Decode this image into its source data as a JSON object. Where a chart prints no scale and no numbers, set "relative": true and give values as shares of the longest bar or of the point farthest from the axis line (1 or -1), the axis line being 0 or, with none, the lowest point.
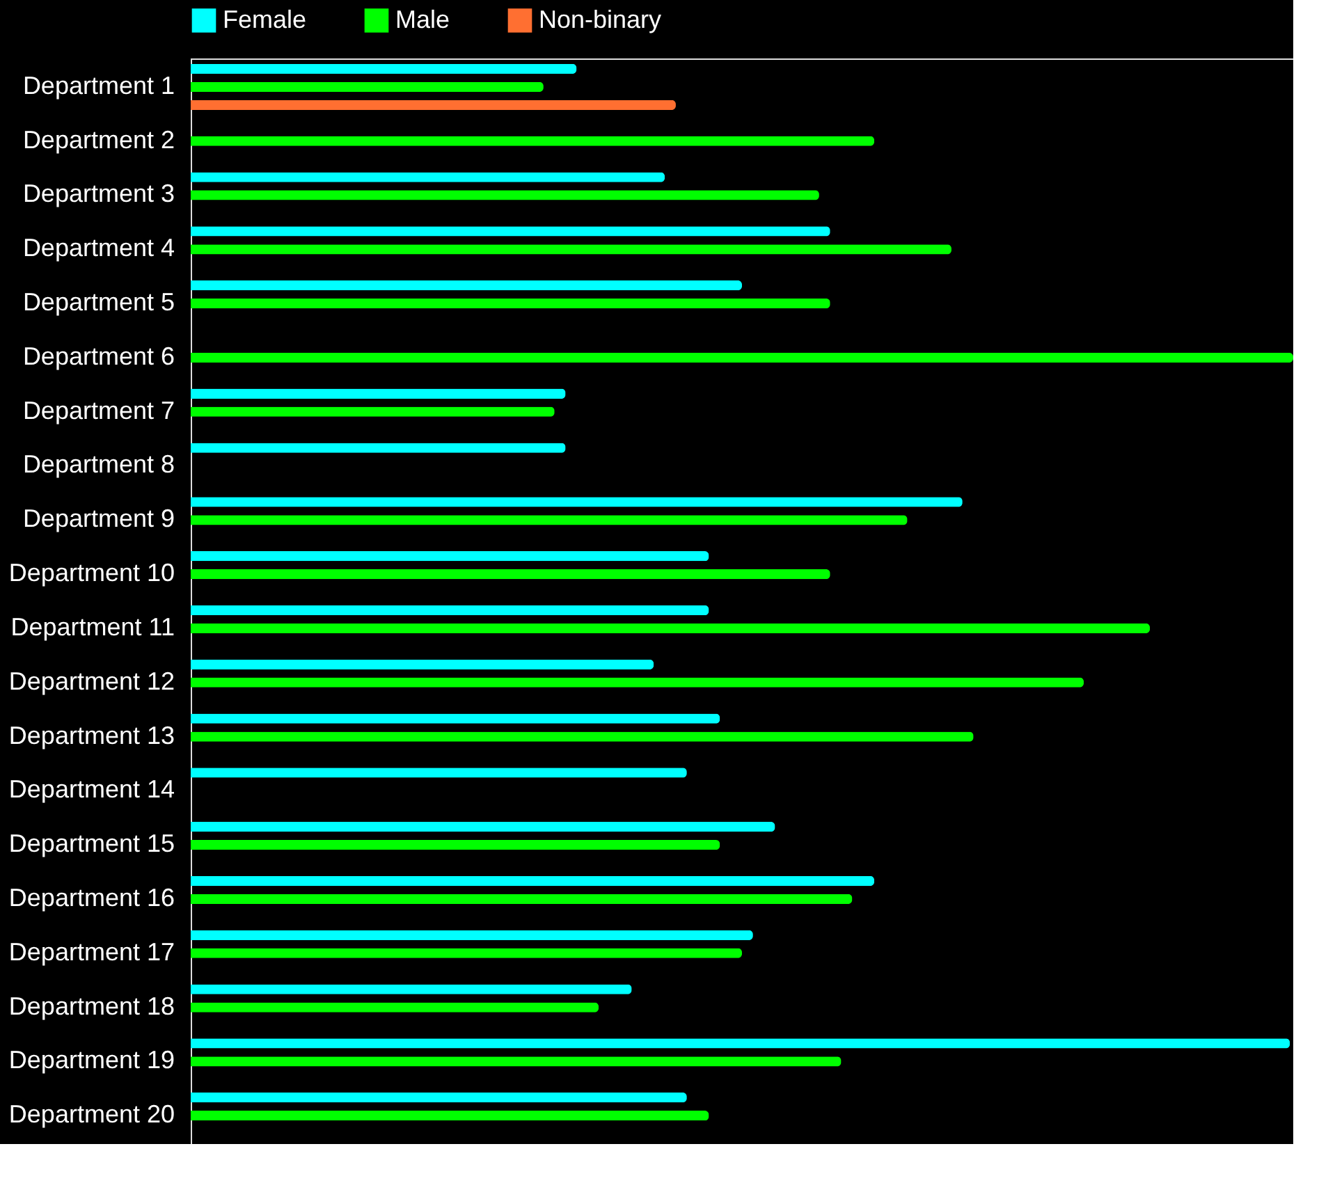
{
  "chart_data": {
    "type": "bar",
    "orientation": "horizontal",
    "relative": true,
    "legend": "top",
    "categories": [
      "Department 1",
      "Department 2",
      "Department 3",
      "Department 4",
      "Department 5",
      "Department 6",
      "Department 7",
      "Department 8",
      "Department 9",
      "Department 10",
      "Department 11",
      "Department 12",
      "Department 13",
      "Department 14",
      "Department 15",
      "Department 16",
      "Department 17",
      "Department 18",
      "Department 19",
      "Department 20"
    ],
    "series": [
      {
        "name": "Female",
        "color": "#00ffff",
        "values": [
          0.35,
          null,
          0.43,
          0.58,
          0.5,
          null,
          0.34,
          0.34,
          0.7,
          0.47,
          0.47,
          0.42,
          0.48,
          0.45,
          0.53,
          0.62,
          0.51,
          0.4,
          0.997,
          0.45
        ]
      },
      {
        "name": "Male",
        "color": "#00ff00",
        "values": [
          0.32,
          0.62,
          0.57,
          0.69,
          0.58,
          1,
          0.33,
          null,
          0.65,
          0.58,
          0.87,
          0.81,
          0.71,
          null,
          0.48,
          0.6,
          0.5,
          0.37,
          0.59,
          0.47
        ]
      },
      {
        "name": "Non-binary",
        "color": "#ff6f31",
        "values": [
          0.44,
          null,
          null,
          null,
          null,
          null,
          null,
          null,
          null,
          null,
          null,
          null,
          null,
          null,
          null,
          null,
          null,
          null,
          null,
          null
        ]
      }
    ]
  }
}
